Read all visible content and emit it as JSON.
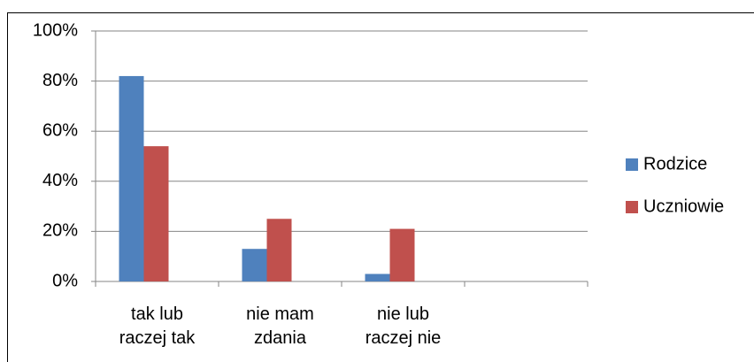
{
  "chart_data": {
    "type": "bar",
    "categories": [
      "tak lub raczej tak",
      "nie mam zdania",
      "nie lub raczej nie",
      null
    ],
    "series": [
      {
        "name": "Rodzice",
        "color": "#4f81bd",
        "values": [
          82,
          13,
          3,
          null
        ]
      },
      {
        "name": "Uczniowie",
        "color": "#c0504d",
        "values": [
          54,
          25,
          21,
          null
        ]
      }
    ],
    "ylim": [
      0,
      100
    ],
    "yticks": [
      {
        "value": 0,
        "label": "0%"
      },
      {
        "value": 20,
        "label": "20%"
      },
      {
        "value": 40,
        "label": "40%"
      },
      {
        "value": 60,
        "label": "60%"
      },
      {
        "value": 80,
        "label": "80%"
      },
      {
        "value": 100,
        "label": "100%"
      }
    ],
    "grid": true,
    "legend": "right"
  }
}
